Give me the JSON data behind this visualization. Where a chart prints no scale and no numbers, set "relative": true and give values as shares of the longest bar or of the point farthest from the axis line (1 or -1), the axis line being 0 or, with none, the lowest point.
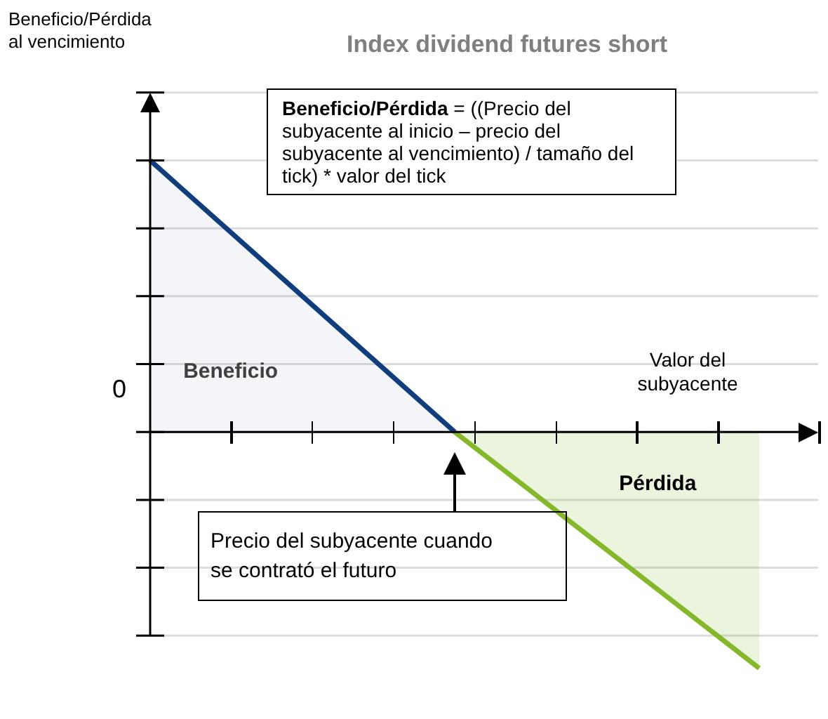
{
  "chart_data": {
    "type": "area",
    "title": "Index dividend futures short",
    "xlabel": "Valor del subyacente",
    "relative": true,
    "grid": "y",
    "legend": false,
    "categories": [
      null,
      null,
      null
    ],
    "series": [
      {
        "name": "Beneficio",
        "color": "#103e7c",
        "values": [
          1,
          0,
          null
        ]
      },
      {
        "name": "Pérdida",
        "color": "#84b82a",
        "values": [
          null,
          0,
          -0.87
        ]
      }
    ],
    "annotations": [
      "Beneficio/Pérdida al vencimiento",
      "0",
      "Beneficio/Pérdida = ((Precio del subyacente al inicio – precio del subyacente al vencimiento) / tamaño del tick) * valor del tick",
      "Precio del subyacente cuando se contrató el futuro"
    ]
  }
}
